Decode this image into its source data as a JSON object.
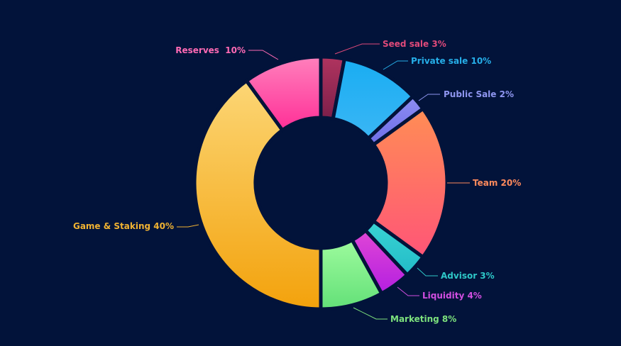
{
  "background": "#02133a",
  "chart_data": {
    "type": "pie",
    "variant": "donut",
    "title": "",
    "slices": [
      {
        "label": "Seed sale 3%",
        "name": "Seed sale",
        "value": 3,
        "color_top": "#b0345f",
        "color_bottom": "#7d1f4a",
        "label_color": "#e14a7a"
      },
      {
        "label": "Private sale 10%",
        "name": "Private sale",
        "value": 10,
        "color_top": "#19adf2",
        "color_bottom": "#3ab6f5",
        "label_color": "#26aee8"
      },
      {
        "label": "Public Sale 2%",
        "name": "Public Sale",
        "value": 2,
        "color_top": "#8c8cf2",
        "color_bottom": "#6f6fe8",
        "label_color": "#8f96f0"
      },
      {
        "label": "Team 20%",
        "name": "Team",
        "value": 20,
        "color_top": "#ff8d55",
        "color_bottom": "#ff5577",
        "label_color": "#ff8a5c"
      },
      {
        "label": "Advisor 3%",
        "name": "Advisor",
        "value": 3,
        "color_top": "#3ad3d3",
        "color_bottom": "#22bcc8",
        "label_color": "#2ec8c8"
      },
      {
        "label": "Liquidity 4%",
        "name": "Liquidity",
        "value": 4,
        "color_top": "#e046d6",
        "color_bottom": "#b41fe0",
        "label_color": "#d14ee0"
      },
      {
        "label": "Marketing 8%",
        "name": "Marketing",
        "value": 8,
        "color_top": "#9dfb9d",
        "color_bottom": "#63e078",
        "label_color": "#7de27d"
      },
      {
        "label": "Game & Staking 40%",
        "name": "Game & Staking",
        "value": 40,
        "color_top": "#fcd675",
        "color_bottom": "#f3a20c",
        "label_color": "#f0b232"
      },
      {
        "label": "Reserves  10%",
        "name": "Reserves",
        "value": 10,
        "color_top": "#ff80bc",
        "color_bottom": "#ff2f97",
        "label_color": "#ff6ab4"
      }
    ],
    "start_angle_deg": 0,
    "direction": "clockwise",
    "legend": "none"
  }
}
